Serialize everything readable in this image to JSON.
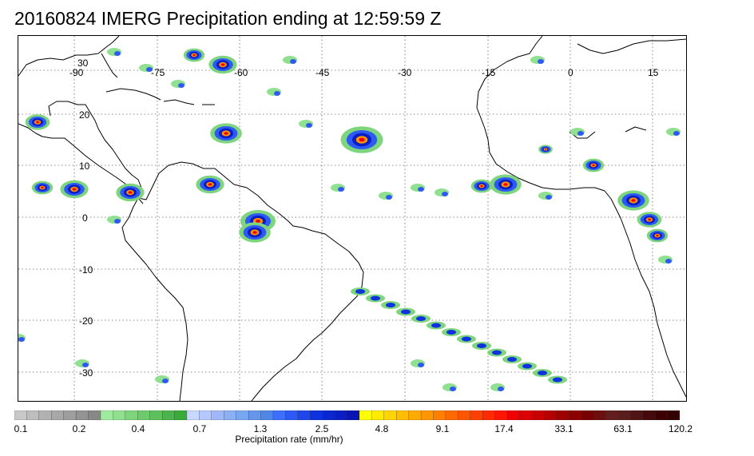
{
  "title": "20160824 IMERG Precipitation ending at 12:59:59 Z",
  "map": {
    "lon_labels": [
      "-90",
      "-75",
      "-60",
      "-45",
      "-30",
      "-15",
      "0",
      "15"
    ],
    "lat_labels": [
      "30",
      "20",
      "10",
      "0",
      "-10",
      "-20",
      "-30"
    ],
    "coastline_color": "#000000",
    "graticule_color": "#666666"
  },
  "colorbar": {
    "title": "Precipitation rate (mm/hr)",
    "labels": [
      "0.1",
      "0.2",
      "0.4",
      "0.7",
      "1.3",
      "2.5",
      "4.8",
      "9.1",
      "17.4",
      "33.1",
      "63.1",
      "120.2"
    ],
    "colors": [
      "#c8c8c8",
      "#bdbdbd",
      "#b2b2b2",
      "#a8a8a8",
      "#9d9d9d",
      "#939393",
      "#888888",
      "#a0eaa0",
      "#8fe08f",
      "#7ed57e",
      "#6dcb6d",
      "#5cc05c",
      "#4bb54b",
      "#3aaa3a",
      "#c8d8ff",
      "#b4c8ff",
      "#a0b8fa",
      "#8cb0f5",
      "#78a6f0",
      "#6496eb",
      "#5086e6",
      "#3c6eff",
      "#2d5af5",
      "#1e46eb",
      "#0f32e1",
      "#0a28d2",
      "#0a1ec3",
      "#0a14b4",
      "#ffff00",
      "#ffea00",
      "#ffd400",
      "#ffbf00",
      "#ffaa00",
      "#ff9500",
      "#ff8000",
      "#ff6a00",
      "#ff5500",
      "#ff4000",
      "#ff2a00",
      "#ff1500",
      "#f00000",
      "#dc0000",
      "#c80000",
      "#b40000",
      "#a00000",
      "#8c0000",
      "#780000",
      "#6e0f0f",
      "#641e1e",
      "#5a1e1e",
      "#501414",
      "#460a0a",
      "#3c0000",
      "#320000"
    ]
  }
}
